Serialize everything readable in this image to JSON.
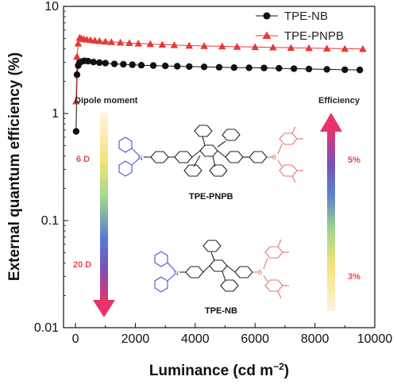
{
  "chart_data": {
    "type": "scatter",
    "title": "",
    "xlabel": "Luminance (cd m",
    "xlabel_sup": "−2",
    "xlabel_close": ")",
    "ylabel": "External quantum efficiency (%)",
    "xlim": [
      -400,
      10000
    ],
    "ylim": [
      0.01,
      10
    ],
    "yscale": "log",
    "xticks": [
      0,
      2000,
      4000,
      6000,
      8000,
      10000
    ],
    "xtick_labels": [
      "0",
      "2000",
      "4000",
      "6000",
      "8000",
      "10000"
    ],
    "yticks": [
      0.01,
      0.1,
      1,
      10
    ],
    "ytick_labels": [
      "0.01",
      "0.1",
      "1",
      "10"
    ],
    "legend_position": "top-right",
    "series": [
      {
        "name": "TPE-NB",
        "color": "#111111",
        "marker": "circle",
        "x": [
          20,
          50,
          90,
          140,
          200,
          300,
          420,
          600,
          800,
          1000,
          1300,
          1600,
          1900,
          2200,
          2600,
          3000,
          3400,
          3800,
          4300,
          4800,
          5300,
          5800,
          6300,
          6800,
          7300,
          7800,
          8400,
          9000,
          9500
        ],
        "y": [
          0.68,
          2.3,
          2.8,
          3.0,
          3.05,
          3.1,
          3.08,
          3.02,
          2.98,
          2.95,
          2.9,
          2.88,
          2.85,
          2.82,
          2.8,
          2.78,
          2.76,
          2.74,
          2.72,
          2.7,
          2.68,
          2.67,
          2.66,
          2.64,
          2.62,
          2.6,
          2.58,
          2.56,
          2.55
        ]
      },
      {
        "name": "TPE-PNPB",
        "color": "#e53935",
        "marker": "triangle",
        "x": [
          20,
          50,
          90,
          140,
          200,
          280,
          380,
          500,
          650,
          800,
          1000,
          1200,
          1500,
          1800,
          2100,
          2500,
          2900,
          3300,
          3800,
          4300,
          4900,
          5400,
          6000,
          6600,
          7200,
          7800,
          8400,
          9000,
          9600
        ],
        "y": [
          1.3,
          3.4,
          4.5,
          5.1,
          5.0,
          4.95,
          4.9,
          4.85,
          4.8,
          4.75,
          4.7,
          4.65,
          4.6,
          4.55,
          4.5,
          4.45,
          4.4,
          4.35,
          4.3,
          4.27,
          4.23,
          4.2,
          4.17,
          4.14,
          4.11,
          4.08,
          4.05,
          4.02,
          4.0
        ]
      }
    ]
  },
  "annotations": {
    "dipole_label": "Dipole moment",
    "efficiency_label": "Efficiency",
    "dipole_high": "6 D",
    "dipole_low": "20 D",
    "eff_high": "5%",
    "eff_low": "3%",
    "molecule_top": "TPE-PNPB",
    "molecule_bottom": "TPE-NB",
    "boron_symbol": "B",
    "nitrogen_symbol": "N"
  },
  "colors": {
    "donor": "#4b4fd6",
    "acceptor": "#e57373",
    "core": "#222222",
    "arrow_top": "#fde4c6",
    "arrow_bottom": "#e8336b"
  }
}
